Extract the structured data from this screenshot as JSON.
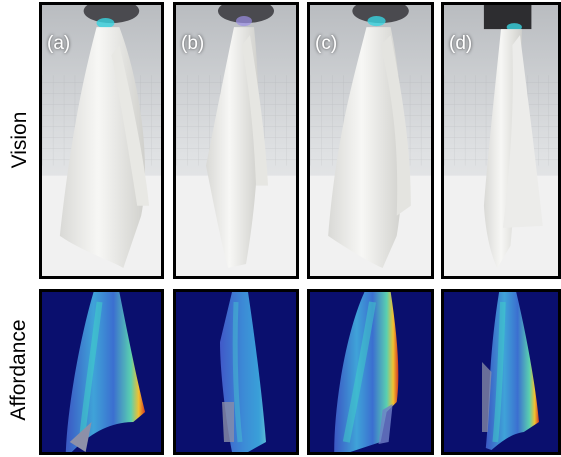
{
  "row_labels": {
    "vision": "Vision",
    "affordance": "Affordance"
  },
  "panels": [
    {
      "label": "(a)",
      "view": "vision"
    },
    {
      "label": "(b)",
      "view": "vision"
    },
    {
      "label": "(c)",
      "view": "vision"
    },
    {
      "label": "(d)",
      "view": "vision"
    }
  ],
  "colors": {
    "affordance_background": "#0a0f6e",
    "towel": "#f2f2f0",
    "gripper_glow": "#38d3e0"
  }
}
